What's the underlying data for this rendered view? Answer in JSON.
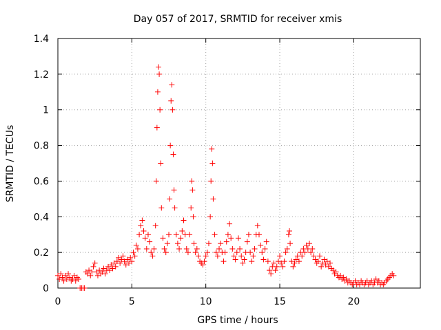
{
  "chart_data": {
    "type": "scatter",
    "title": "Day 057 of 2017, SRMTID for receiver xmis",
    "xlabel": "GPS time / hours",
    "ylabel": "SRMTID / TECUs",
    "xlim": [
      0,
      24.5
    ],
    "ylim": [
      0,
      1.4
    ],
    "xticks": [
      0,
      5,
      10,
      15,
      20
    ],
    "yticks": [
      0,
      0.2,
      0.4,
      0.6,
      0.8,
      1,
      1.2,
      1.4
    ],
    "xtick_labels": [
      "0",
      "5",
      "10",
      "15",
      "20"
    ],
    "ytick_labels": [
      "0",
      "0.2",
      "0.4",
      "0.6",
      "0.8",
      "1",
      "1.2",
      "1.4"
    ],
    "grid": true,
    "marker": "+",
    "marker_color": "#ff0000",
    "series": [
      {
        "name": "SRMTID",
        "points": [
          [
            0.0,
            0.07
          ],
          [
            0.1,
            0.05
          ],
          [
            0.2,
            0.08
          ],
          [
            0.3,
            0.06
          ],
          [
            0.4,
            0.04
          ],
          [
            0.5,
            0.07
          ],
          [
            0.6,
            0.05
          ],
          [
            0.7,
            0.08
          ],
          [
            0.8,
            0.06
          ],
          [
            0.9,
            0.04
          ],
          [
            1.0,
            0.05
          ],
          [
            1.1,
            0.07
          ],
          [
            1.2,
            0.04
          ],
          [
            1.3,
            0.06
          ],
          [
            1.4,
            0.05
          ],
          [
            1.5,
            0.0
          ],
          [
            1.6,
            0.0
          ],
          [
            1.7,
            0.0
          ],
          [
            1.8,
            0.0
          ],
          [
            1.9,
            0.09
          ],
          [
            2.0,
            0.08
          ],
          [
            2.1,
            0.1
          ],
          [
            2.2,
            0.07
          ],
          [
            2.3,
            0.09
          ],
          [
            2.4,
            0.12
          ],
          [
            2.5,
            0.14
          ],
          [
            2.6,
            0.09
          ],
          [
            2.7,
            0.07
          ],
          [
            2.8,
            0.1
          ],
          [
            2.9,
            0.08
          ],
          [
            3.0,
            0.09
          ],
          [
            3.1,
            0.11
          ],
          [
            3.2,
            0.08
          ],
          [
            3.3,
            0.1
          ],
          [
            3.4,
            0.12
          ],
          [
            3.5,
            0.1
          ],
          [
            3.6,
            0.13
          ],
          [
            3.7,
            0.11
          ],
          [
            3.8,
            0.14
          ],
          [
            3.9,
            0.12
          ],
          [
            4.0,
            0.15
          ],
          [
            4.1,
            0.17
          ],
          [
            4.2,
            0.14
          ],
          [
            4.3,
            0.16
          ],
          [
            4.4,
            0.18
          ],
          [
            4.5,
            0.15
          ],
          [
            4.6,
            0.13
          ],
          [
            4.7,
            0.16
          ],
          [
            4.8,
            0.14
          ],
          [
            4.9,
            0.17
          ],
          [
            5.0,
            0.15
          ],
          [
            5.1,
            0.2
          ],
          [
            5.2,
            0.18
          ],
          [
            5.3,
            0.24
          ],
          [
            5.4,
            0.22
          ],
          [
            5.5,
            0.3
          ],
          [
            5.6,
            0.35
          ],
          [
            5.7,
            0.38
          ],
          [
            5.8,
            0.32
          ],
          [
            5.9,
            0.28
          ],
          [
            6.0,
            0.22
          ],
          [
            6.1,
            0.3
          ],
          [
            6.2,
            0.26
          ],
          [
            6.3,
            0.2
          ],
          [
            6.4,
            0.18
          ],
          [
            6.5,
            0.22
          ],
          [
            6.6,
            0.35
          ],
          [
            6.65,
            0.6
          ],
          [
            6.7,
            0.9
          ],
          [
            6.75,
            1.1
          ],
          [
            6.8,
            1.24
          ],
          [
            6.85,
            1.2
          ],
          [
            6.9,
            1.0
          ],
          [
            6.95,
            0.7
          ],
          [
            7.0,
            0.45
          ],
          [
            7.1,
            0.28
          ],
          [
            7.2,
            0.22
          ],
          [
            7.3,
            0.2
          ],
          [
            7.4,
            0.25
          ],
          [
            7.5,
            0.3
          ],
          [
            7.55,
            0.5
          ],
          [
            7.6,
            0.8
          ],
          [
            7.65,
            1.05
          ],
          [
            7.7,
            1.14
          ],
          [
            7.75,
            1.0
          ],
          [
            7.8,
            0.75
          ],
          [
            7.85,
            0.55
          ],
          [
            7.9,
            0.45
          ],
          [
            8.0,
            0.3
          ],
          [
            8.1,
            0.25
          ],
          [
            8.2,
            0.22
          ],
          [
            8.3,
            0.28
          ],
          [
            8.4,
            0.32
          ],
          [
            8.5,
            0.38
          ],
          [
            8.6,
            0.3
          ],
          [
            8.7,
            0.22
          ],
          [
            8.8,
            0.2
          ],
          [
            8.9,
            0.3
          ],
          [
            9.0,
            0.45
          ],
          [
            9.05,
            0.6
          ],
          [
            9.1,
            0.55
          ],
          [
            9.15,
            0.4
          ],
          [
            9.2,
            0.25
          ],
          [
            9.3,
            0.2
          ],
          [
            9.4,
            0.22
          ],
          [
            9.5,
            0.18
          ],
          [
            9.6,
            0.15
          ],
          [
            9.7,
            0.14
          ],
          [
            9.8,
            0.13
          ],
          [
            9.9,
            0.15
          ],
          [
            10.0,
            0.18
          ],
          [
            10.1,
            0.2
          ],
          [
            10.2,
            0.25
          ],
          [
            10.3,
            0.4
          ],
          [
            10.35,
            0.6
          ],
          [
            10.4,
            0.78
          ],
          [
            10.45,
            0.7
          ],
          [
            10.5,
            0.5
          ],
          [
            10.6,
            0.3
          ],
          [
            10.7,
            0.2
          ],
          [
            10.8,
            0.18
          ],
          [
            10.9,
            0.22
          ],
          [
            11.0,
            0.25
          ],
          [
            11.1,
            0.2
          ],
          [
            11.2,
            0.15
          ],
          [
            11.3,
            0.2
          ],
          [
            11.4,
            0.26
          ],
          [
            11.5,
            0.3
          ],
          [
            11.6,
            0.36
          ],
          [
            11.7,
            0.28
          ],
          [
            11.8,
            0.22
          ],
          [
            11.9,
            0.18
          ],
          [
            12.0,
            0.16
          ],
          [
            12.1,
            0.2
          ],
          [
            12.2,
            0.28
          ],
          [
            12.3,
            0.22
          ],
          [
            12.4,
            0.18
          ],
          [
            12.5,
            0.14
          ],
          [
            12.6,
            0.16
          ],
          [
            12.7,
            0.2
          ],
          [
            12.8,
            0.26
          ],
          [
            12.9,
            0.3
          ],
          [
            13.0,
            0.2
          ],
          [
            13.1,
            0.15
          ],
          [
            13.2,
            0.18
          ],
          [
            13.3,
            0.22
          ],
          [
            13.4,
            0.3
          ],
          [
            13.5,
            0.35
          ],
          [
            13.6,
            0.3
          ],
          [
            13.7,
            0.24
          ],
          [
            13.8,
            0.2
          ],
          [
            13.9,
            0.16
          ],
          [
            14.0,
            0.22
          ],
          [
            14.1,
            0.26
          ],
          [
            14.2,
            0.15
          ],
          [
            14.3,
            0.1
          ],
          [
            14.4,
            0.08
          ],
          [
            14.5,
            0.12
          ],
          [
            14.6,
            0.14
          ],
          [
            14.7,
            0.1
          ],
          [
            14.8,
            0.12
          ],
          [
            14.9,
            0.15
          ],
          [
            15.0,
            0.18
          ],
          [
            15.1,
            0.14
          ],
          [
            15.2,
            0.12
          ],
          [
            15.3,
            0.15
          ],
          [
            15.4,
            0.2
          ],
          [
            15.5,
            0.22
          ],
          [
            15.6,
            0.3
          ],
          [
            15.65,
            0.32
          ],
          [
            15.7,
            0.25
          ],
          [
            15.8,
            0.15
          ],
          [
            15.9,
            0.12
          ],
          [
            16.0,
            0.14
          ],
          [
            16.1,
            0.16
          ],
          [
            16.2,
            0.18
          ],
          [
            16.3,
            0.15
          ],
          [
            16.4,
            0.2
          ],
          [
            16.5,
            0.18
          ],
          [
            16.6,
            0.22
          ],
          [
            16.7,
            0.2
          ],
          [
            16.8,
            0.24
          ],
          [
            16.9,
            0.22
          ],
          [
            17.0,
            0.25
          ],
          [
            17.1,
            0.2
          ],
          [
            17.2,
            0.22
          ],
          [
            17.3,
            0.18
          ],
          [
            17.4,
            0.16
          ],
          [
            17.5,
            0.14
          ],
          [
            17.6,
            0.15
          ],
          [
            17.7,
            0.18
          ],
          [
            17.8,
            0.12
          ],
          [
            17.9,
            0.14
          ],
          [
            18.0,
            0.16
          ],
          [
            18.1,
            0.13
          ],
          [
            18.2,
            0.15
          ],
          [
            18.3,
            0.12
          ],
          [
            18.4,
            0.14
          ],
          [
            18.5,
            0.11
          ],
          [
            18.6,
            0.1
          ],
          [
            18.7,
            0.08
          ],
          [
            18.8,
            0.09
          ],
          [
            18.9,
            0.07
          ],
          [
            19.0,
            0.06
          ],
          [
            19.1,
            0.07
          ],
          [
            19.2,
            0.05
          ],
          [
            19.3,
            0.06
          ],
          [
            19.4,
            0.04
          ],
          [
            19.5,
            0.05
          ],
          [
            19.6,
            0.03
          ],
          [
            19.7,
            0.04
          ],
          [
            19.8,
            0.03
          ],
          [
            19.9,
            0.02
          ],
          [
            20.0,
            0.03
          ],
          [
            20.1,
            0.04
          ],
          [
            20.2,
            0.02
          ],
          [
            20.3,
            0.03
          ],
          [
            20.4,
            0.02
          ],
          [
            20.5,
            0.04
          ],
          [
            20.6,
            0.03
          ],
          [
            20.7,
            0.02
          ],
          [
            20.8,
            0.03
          ],
          [
            20.9,
            0.04
          ],
          [
            21.0,
            0.02
          ],
          [
            21.1,
            0.03
          ],
          [
            21.2,
            0.04
          ],
          [
            21.3,
            0.02
          ],
          [
            21.4,
            0.03
          ],
          [
            21.5,
            0.05
          ],
          [
            21.6,
            0.03
          ],
          [
            21.7,
            0.04
          ],
          [
            21.8,
            0.02
          ],
          [
            21.9,
            0.03
          ],
          [
            22.0,
            0.02
          ],
          [
            22.1,
            0.03
          ],
          [
            22.2,
            0.04
          ],
          [
            22.3,
            0.05
          ],
          [
            22.4,
            0.06
          ],
          [
            22.5,
            0.07
          ],
          [
            22.6,
            0.08
          ],
          [
            22.7,
            0.07
          ]
        ]
      }
    ]
  }
}
